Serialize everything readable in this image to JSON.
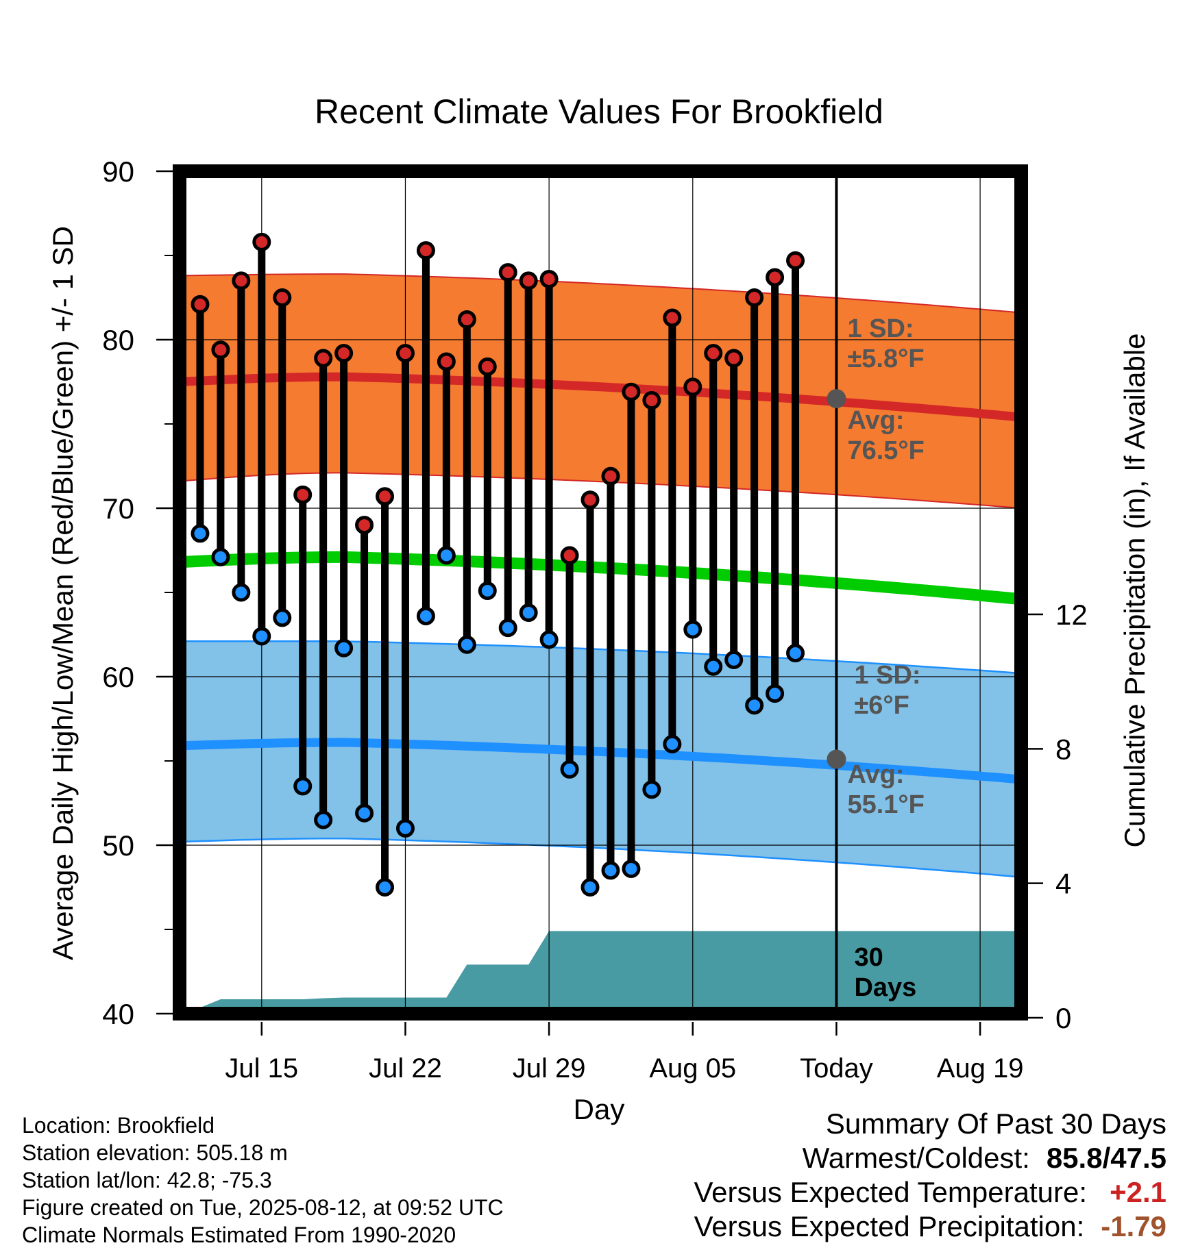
{
  "chart_data": {
    "type": "line",
    "title": "Recent Climate Values For Brookfield",
    "xlabel": "Day",
    "ylabel": "Average Daily High/Low/Mean (Red/Blue/Green) +/- 1 SD",
    "y2label": "Cumulative Precipitation (in), If Available",
    "ylim": [
      40,
      90
    ],
    "y2lim": [
      0,
      12
    ],
    "yticks": [
      "40",
      "50",
      "60",
      "70",
      "80",
      "90"
    ],
    "y2ticks": [
      "0",
      "4",
      "8",
      "12"
    ],
    "xticks": [
      "Jul 15",
      "Jul 22",
      "Jul 29",
      "Aug 05",
      "Today",
      "Aug 19"
    ],
    "x_start": "Jul 11",
    "x_end": "Aug 21",
    "grid": true,
    "daily_high": [
      82.1,
      79.4,
      83.5,
      85.8,
      82.5,
      70.8,
      78.9,
      79.2,
      69.0,
      70.7,
      79.2,
      85.3,
      78.7,
      81.2,
      78.4,
      84.0,
      83.5,
      83.6,
      67.2,
      70.5,
      71.9,
      76.9,
      76.4,
      81.3,
      77.2,
      79.2,
      78.9,
      82.5,
      83.7,
      84.7
    ],
    "daily_low": [
      68.5,
      67.1,
      65.0,
      62.4,
      63.5,
      53.5,
      51.5,
      61.7,
      51.9,
      47.5,
      51.0,
      63.6,
      67.2,
      61.9,
      65.1,
      62.9,
      63.8,
      62.2,
      54.5,
      47.5,
      48.5,
      48.6,
      53.3,
      56.0,
      62.8,
      60.6,
      61.0,
      58.3,
      59.0,
      61.4
    ],
    "normal_high": {
      "start": 77.5,
      "peak": 77.8,
      "end": 75.4,
      "sd_upper": [
        83.8,
        83.9,
        81.6
      ],
      "sd_lower": [
        71.6,
        72.1,
        70.0
      ]
    },
    "normal_low": {
      "start": 55.9,
      "peak": 56.1,
      "end": 53.9,
      "sd_upper": [
        62.1,
        62.1,
        60.2
      ],
      "sd_lower": [
        50.2,
        50.4,
        48.1
      ]
    },
    "normal_mean": {
      "start": 66.8,
      "peak": 67.1,
      "end": 64.6
    },
    "cumulative_precip": [
      0.0,
      0.3,
      0.55,
      0.55,
      0.55,
      0.55,
      0.55,
      0.58,
      0.6,
      0.6,
      0.6,
      0.6,
      0.6,
      0.6,
      1.58,
      1.58,
      1.58,
      1.58,
      2.58,
      2.58,
      2.58,
      2.58,
      2.58,
      2.58,
      2.58,
      2.58,
      2.58,
      2.58,
      2.58,
      2.58,
      2.58
    ],
    "annotations": {
      "high_sd": "1 SD:\n±5.8°F",
      "high_avg": "Avg:\n76.5°F",
      "low_sd": "1 SD:\n±6°F",
      "low_avg": "Avg:\n55.1°F",
      "days": "30\nDays",
      "today_high": 76.5,
      "today_low": 55.1
    },
    "colors": {
      "high_band": "#f47b30",
      "high_line": "#d42727",
      "low_band": "#82c1e8",
      "low_line": "#1e90ff",
      "mean_line": "#00cc00",
      "precip": "#489ba3",
      "high_dot": "#d42727",
      "low_dot": "#1e90ff"
    }
  },
  "footer": {
    "location": "Location: Brookfield",
    "elevation": "Station elevation: 505.18 m",
    "latlon": "Station lat/lon: 42.8; -75.3",
    "created": "Figure created on Tue, 2025-08-12, at 09:52 UTC",
    "normals": "Climate Normals Estimated From 1990-2020"
  },
  "summary": {
    "title": "Summary Of Past 30 Days",
    "warm_cold_label": "Warmest/Coldest:",
    "warm_cold_value": "85.8/47.5",
    "temp_label": "Versus Expected Temperature:",
    "temp_value": "+2.1",
    "precip_label": "Versus Expected Precipitation:",
    "precip_value": "-1.79"
  }
}
